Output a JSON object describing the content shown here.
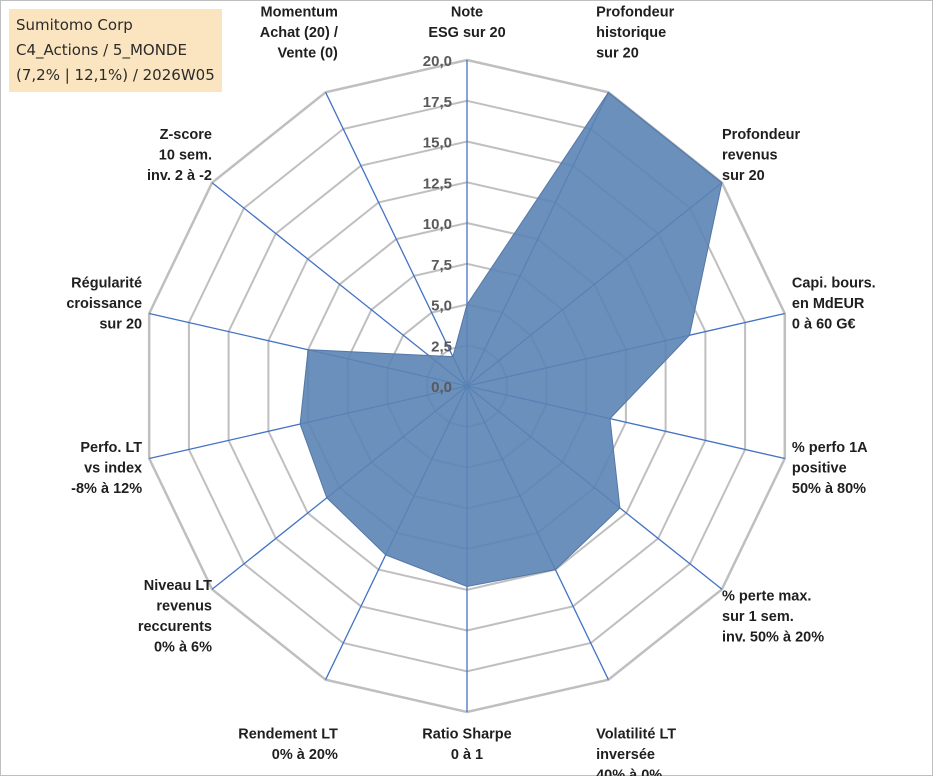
{
  "title_box": {
    "line1": "Sumitomo Corp",
    "line2": "C4_Actions / 5_MONDE",
    "line3": "(7,2% | 12,1%) / 2026W05"
  },
  "colors": {
    "fill": "#5b84b4",
    "grid": "#bfbfbf",
    "spoke": "#4472c4",
    "edge": "#5577a8"
  },
  "chart_data": {
    "type": "radar",
    "ylim": [
      0,
      20
    ],
    "grid": true,
    "ticks": [
      "0,0",
      "2,5",
      "5,0",
      "7,5",
      "10,0",
      "12,5",
      "15,0",
      "17,5",
      "20,0"
    ],
    "axes": [
      {
        "label": [
          "Note",
          "ESG sur 20"
        ],
        "value": 5.0
      },
      {
        "label": [
          "Profondeur",
          "historique",
          "sur 20"
        ],
        "value": 20.0
      },
      {
        "label": [
          "Profondeur",
          "revenus",
          "sur 20"
        ],
        "value": 20.0
      },
      {
        "label": [
          "Capi. bours.",
          "en MdEUR",
          "0 à 60 G€"
        ],
        "value": 14.0
      },
      {
        "label": [
          "% perfo 1A",
          "positive",
          "50% à 80%"
        ],
        "value": 9.0
      },
      {
        "label": [
          "% perte max.",
          "sur 1 sem.",
          "inv. 50% à 20%"
        ],
        "value": 12.0
      },
      {
        "label": [
          "Volatilité LT",
          "inversée",
          "40% à 0%"
        ],
        "value": 12.5
      },
      {
        "label": [
          "Ratio Sharpe",
          "0 à 1"
        ],
        "value": 12.3
      },
      {
        "label": [
          "Rendement LT",
          "0% à 20%"
        ],
        "value": 11.5
      },
      {
        "label": [
          "Niveau LT",
          "revenus",
          "reccurents",
          "0% à 6%"
        ],
        "value": 11.0
      },
      {
        "label": [
          "Perfo. LT",
          "vs index",
          "-8% à 12%"
        ],
        "value": 10.5
      },
      {
        "label": [
          "Régularité",
          "croissance",
          "sur 20"
        ],
        "value": 10.0
      },
      {
        "label": [
          "Z-score",
          "10 sem.",
          "inv. 2 à -2"
        ],
        "value": 3.0
      },
      {
        "label": [
          "Momentum",
          "Achat (20) /",
          "Vente (0)"
        ],
        "value": 2.0
      }
    ]
  }
}
